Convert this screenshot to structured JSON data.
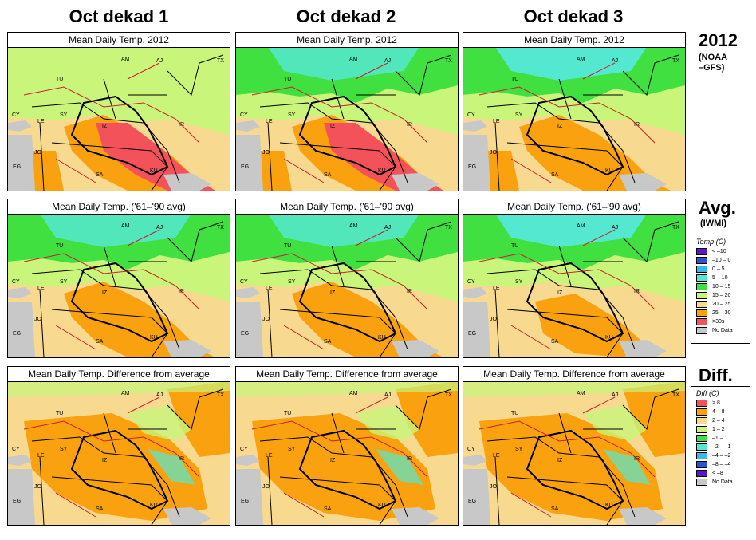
{
  "columns": [
    "Oct dekad 1",
    "Oct dekad 2",
    "Oct dekad 3"
  ],
  "rows": [
    {
      "label": "2012",
      "sublabel": "(NOAA\n–GFS)",
      "panel_title": "Mean Daily Temp. 2012"
    },
    {
      "label": "Avg.",
      "sublabel": "(IWMI)",
      "panel_title": "Mean Daily Temp. ('61–'90 avg)"
    },
    {
      "label": "Diff.",
      "sublabel": "",
      "panel_title": "Mean Daily Temp. Difference from average"
    }
  ],
  "place_labels": [
    "AM",
    "AJ",
    "TX",
    "TU",
    "SY",
    "IR",
    "JO",
    "EG",
    "SA",
    "KU",
    "CY",
    "LE",
    "IZ"
  ],
  "temp_legend": {
    "title": "Temp (C)",
    "items": [
      {
        "label": "< –10",
        "color": "#5a16c8"
      },
      {
        "label": "–10 – 0",
        "color": "#2855d8"
      },
      {
        "label": "0 – 5",
        "color": "#3ab8e8"
      },
      {
        "label": "5 – 10",
        "color": "#55e8d0"
      },
      {
        "label": "10 – 15",
        "color": "#3fe03f"
      },
      {
        "label": "15 – 20",
        "color": "#c8f57a"
      },
      {
        "label": "20 – 25",
        "color": "#f7d98f"
      },
      {
        "label": "25 – 30",
        "color": "#f9a10e"
      },
      {
        "label": ">30s",
        "color": "#f4525a"
      },
      {
        "label": "No Data",
        "color": "#c8c8c8"
      }
    ]
  },
  "diff_legend": {
    "title": "Diff (C)",
    "items": [
      {
        "label": "> 8",
        "color": "#f4525a"
      },
      {
        "label": "4 – 8",
        "color": "#f9a10e"
      },
      {
        "label": "2 – 4",
        "color": "#f7d98f"
      },
      {
        "label": "1 – 2",
        "color": "#c8f57a"
      },
      {
        "label": "–1 – 1",
        "color": "#3fe03f"
      },
      {
        "label": "–2 – –1",
        "color": "#55e8d0"
      },
      {
        "label": "–4 – –2",
        "color": "#3ab8e8"
      },
      {
        "label": "–8 – –4",
        "color": "#2855d8"
      },
      {
        "label": "< –8",
        "color": "#5a16c8"
      },
      {
        "label": "No Data",
        "color": "#c8c8c8"
      }
    ]
  },
  "colors": {
    "red": "#f4525a",
    "orange": "#f9a10e",
    "tan": "#f7d98f",
    "lime": "#c8f57a",
    "green": "#3fe03f",
    "aqua": "#55e8d0",
    "gray": "#c8c8c8",
    "border": "#000000",
    "road": "#c8202a"
  }
}
